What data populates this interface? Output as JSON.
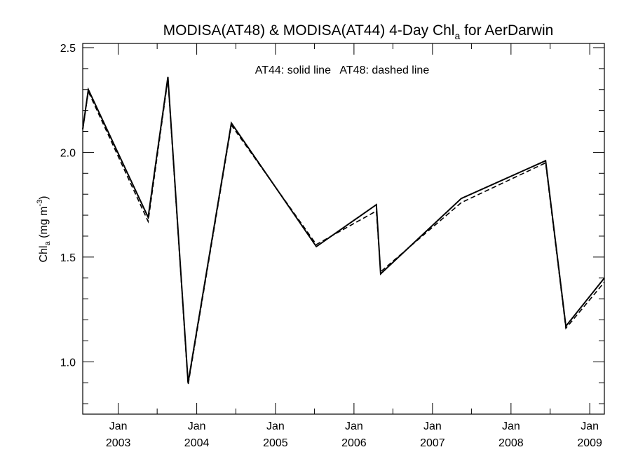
{
  "chart_data": {
    "type": "line",
    "title": {
      "main": "MODISA(AT48) & MODISA(AT44) 4-Day Chl",
      "sub": "a",
      "suffix": " for AerDarwin"
    },
    "ylabel": {
      "main": "Chl",
      "sub": "a",
      "units_pre": " (mg m",
      "units_sup": "-3",
      "units_post": ")"
    },
    "annotation": "AT44: solid line   AT48: dashed line",
    "ylim": [
      0.75,
      2.52
    ],
    "yticks": [
      {
        "value": 1.0,
        "label": "1.0"
      },
      {
        "value": 1.5,
        "label": "1.5"
      },
      {
        "value": 2.0,
        "label": "2.0"
      },
      {
        "value": 2.5,
        "label": "2.5"
      }
    ],
    "xlim": [
      "2002-07-20",
      "2009-03-10"
    ],
    "xticks": [
      {
        "date": "2003-01-01",
        "month": "Jan",
        "year": "2003"
      },
      {
        "date": "2004-01-01",
        "month": "Jan",
        "year": "2004"
      },
      {
        "date": "2005-01-01",
        "month": "Jan",
        "year": "2005"
      },
      {
        "date": "2006-01-01",
        "month": "Jan",
        "year": "2006"
      },
      {
        "date": "2007-01-01",
        "month": "Jan",
        "year": "2007"
      },
      {
        "date": "2008-01-01",
        "month": "Jan",
        "year": "2008"
      },
      {
        "date": "2009-01-01",
        "month": "Jan",
        "year": "2009"
      }
    ],
    "grid": false,
    "series": [
      {
        "name": "AT44",
        "style": "solid",
        "points": [
          {
            "x": "2002-07-20",
            "y": 2.11
          },
          {
            "x": "2002-08-15",
            "y": 2.3
          },
          {
            "x": "2003-05-20",
            "y": 1.69
          },
          {
            "x": "2003-08-20",
            "y": 2.36
          },
          {
            "x": "2003-11-22",
            "y": 0.9
          },
          {
            "x": "2004-06-10",
            "y": 2.14
          },
          {
            "x": "2005-07-10",
            "y": 1.55
          },
          {
            "x": "2006-04-15",
            "y": 1.75
          },
          {
            "x": "2006-05-05",
            "y": 1.42
          },
          {
            "x": "2007-05-15",
            "y": 1.78
          },
          {
            "x": "2008-06-10",
            "y": 1.96
          },
          {
            "x": "2008-09-12",
            "y": 1.17
          },
          {
            "x": "2009-03-10",
            "y": 1.4
          }
        ]
      },
      {
        "name": "AT48",
        "style": "dashed",
        "points": [
          {
            "x": "2002-07-20",
            "y": 2.11
          },
          {
            "x": "2002-08-15",
            "y": 2.29
          },
          {
            "x": "2003-05-20",
            "y": 1.67
          },
          {
            "x": "2003-08-20",
            "y": 2.35
          },
          {
            "x": "2003-11-22",
            "y": 0.89
          },
          {
            "x": "2004-06-10",
            "y": 2.13
          },
          {
            "x": "2005-07-10",
            "y": 1.56
          },
          {
            "x": "2006-04-15",
            "y": 1.72
          },
          {
            "x": "2006-05-05",
            "y": 1.43
          },
          {
            "x": "2007-05-15",
            "y": 1.76
          },
          {
            "x": "2008-06-10",
            "y": 1.95
          },
          {
            "x": "2008-09-12",
            "y": 1.16
          },
          {
            "x": "2009-03-10",
            "y": 1.38
          }
        ]
      }
    ]
  }
}
